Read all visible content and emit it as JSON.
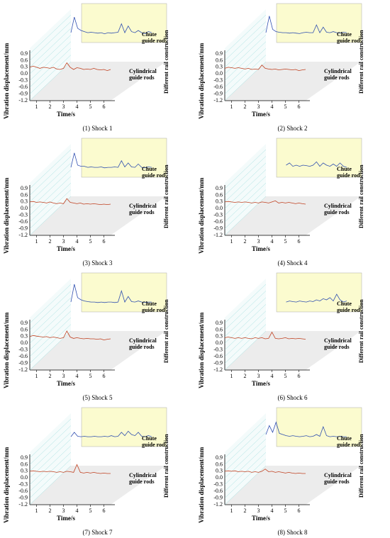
{
  "chart_data": [
    {
      "type": "waterfall",
      "caption": "(1) Shock 1",
      "y_label": "Vibration displacement/mm",
      "x_label": "Time/s",
      "z_label": "Different rail construction",
      "x": [
        0.5,
        0.75,
        1,
        1.25,
        1.5,
        1.75,
        2,
        2.25,
        2.5,
        2.75,
        3,
        3.25,
        3.5,
        3.75,
        4,
        4.25,
        4.5,
        4.75,
        5,
        5.25,
        5.5,
        5.75,
        6,
        6.25,
        6.5
      ],
      "xlim": [
        0.5,
        6.5
      ],
      "xticks": [
        1,
        2,
        3,
        4,
        5,
        6
      ],
      "ylim": [
        -1.2,
        0.9
      ],
      "yticks": [
        0.9,
        0.6,
        0.3,
        {
          "value": 0,
          "label": "0.0"
        },
        -0.3,
        -0.6,
        -0.9,
        -1.2
      ],
      "series": [
        {
          "name": "Chute guide rod",
          "color": "#3050b0",
          "values": [
            0.1,
            0.8,
            0.3,
            0.2,
            0.15,
            0.1,
            0.12,
            0.1,
            0.08,
            0.1,
            0.05,
            0.1,
            0.08,
            0.1,
            0.12,
            0.5,
            0.1,
            0.4,
            0.15,
            0.1,
            0.2,
            0.1,
            0.05,
            0.15,
            0.1
          ]
        },
        {
          "name": "Cylindrical guide rods",
          "color": "#c04020",
          "values": [
            0.3,
            0.35,
            0.3,
            0.25,
            0.3,
            0.28,
            0.25,
            0.3,
            0.22,
            0.2,
            0.25,
            0.5,
            0.3,
            0.2,
            0.28,
            0.25,
            0.2,
            0.22,
            0.2,
            0.25,
            0.2,
            0.18,
            0.2,
            0.15,
            0.2
          ]
        }
      ]
    },
    {
      "type": "waterfall",
      "caption": "(2) Shock 2",
      "y_label": "Vibration displacement/mm",
      "x_label": "Time/s",
      "z_label": "Different rail construction",
      "x": [
        0.5,
        0.75,
        1,
        1.25,
        1.5,
        1.75,
        2,
        2.25,
        2.5,
        2.75,
        3,
        3.25,
        3.5,
        3.75,
        4,
        4.25,
        4.5,
        4.75,
        5,
        5.25,
        5.5,
        5.75,
        6,
        6.25,
        6.5
      ],
      "xlim": [
        0.5,
        6.5
      ],
      "xticks": [
        1,
        2,
        3,
        4,
        5,
        6
      ],
      "ylim": [
        -1.2,
        0.9
      ],
      "yticks": [
        0.9,
        0.6,
        0.3,
        {
          "value": 0,
          "label": "0.0"
        },
        -0.3,
        -0.6,
        -0.9,
        -1.2
      ],
      "series": [
        {
          "name": "Chute guide rod",
          "color": "#3050b0",
          "values": [
            0.1,
            0.85,
            0.25,
            0.15,
            0.12,
            0.1,
            0.1,
            0.08,
            0.1,
            0.08,
            0.06,
            0.1,
            0.12,
            0.1,
            0.1,
            0.45,
            0.1,
            0.35,
            0.12,
            0.1,
            0.15,
            0.1,
            0.08,
            0.12,
            0.1
          ]
        },
        {
          "name": "Cylindrical guide rods",
          "color": "#c04020",
          "values": [
            0.25,
            0.3,
            0.28,
            0.25,
            0.28,
            0.25,
            0.22,
            0.25,
            0.2,
            0.22,
            0.2,
            0.4,
            0.25,
            0.22,
            0.2,
            0.22,
            0.18,
            0.2,
            0.22,
            0.2,
            0.18,
            0.2,
            0.15,
            0.18,
            0.2
          ]
        }
      ]
    },
    {
      "type": "waterfall",
      "caption": "(3) Shock 3",
      "y_label": "Vibration displacement/mm",
      "x_label": "Time/s",
      "z_label": "Different rail construction",
      "x": [
        0.5,
        0.75,
        1,
        1.25,
        1.5,
        1.75,
        2,
        2.25,
        2.5,
        2.75,
        3,
        3.25,
        3.5,
        3.75,
        4,
        4.25,
        4.5,
        4.75,
        5,
        5.25,
        5.5,
        5.75,
        6,
        6.25,
        6.5
      ],
      "xlim": [
        0.5,
        6.5
      ],
      "xticks": [
        1,
        2,
        3,
        4,
        5,
        6
      ],
      "ylim": [
        -1.2,
        0.9
      ],
      "yticks": [
        0.9,
        0.6,
        0.3,
        {
          "value": 0,
          "label": "0.0"
        },
        -0.3,
        -0.6,
        -0.9,
        -1.2
      ],
      "series": [
        {
          "name": "Chute guide rod",
          "color": "#3050b0",
          "values": [
            0.1,
            0.75,
            0.2,
            0.15,
            0.15,
            0.1,
            0.12,
            0.1,
            0.1,
            0.12,
            0.08,
            0.1,
            0.1,
            0.12,
            0.1,
            0.4,
            0.12,
            0.3,
            0.12,
            0.1,
            0.25,
            0.1,
            0.08,
            0.12,
            0.1
          ]
        },
        {
          "name": "Cylindrical guide rods",
          "color": "#c04020",
          "values": [
            0.3,
            0.32,
            0.28,
            0.3,
            0.28,
            0.25,
            0.3,
            0.25,
            0.22,
            0.25,
            0.22,
            0.45,
            0.28,
            0.25,
            0.22,
            0.25,
            0.2,
            0.22,
            0.2,
            0.22,
            0.2,
            0.18,
            0.2,
            0.18,
            0.2
          ]
        }
      ]
    },
    {
      "type": "waterfall",
      "caption": "(4) Shock 4",
      "y_label": "Vibration displacement/mm",
      "x_label": "Time/s",
      "z_label": "Different rail construction",
      "x": [
        0.5,
        0.75,
        1,
        1.25,
        1.5,
        1.75,
        2,
        2.25,
        2.5,
        2.75,
        3,
        3.25,
        3.5,
        3.75,
        4,
        4.25,
        4.5,
        4.75,
        5,
        5.25,
        5.5,
        5.75,
        6,
        6.25,
        6.5
      ],
      "xlim": [
        0.5,
        6.5
      ],
      "xticks": [
        1,
        2,
        3,
        4,
        5,
        6
      ],
      "ylim": [
        -1.2,
        0.9
      ],
      "yticks": [
        0.9,
        0.6,
        0.3,
        {
          "value": 0,
          "label": "0.0"
        },
        -0.3,
        -0.6,
        -0.9,
        -1.2
      ],
      "series": [
        {
          "name": "Chute guide rod",
          "color": "#3050b0",
          "values": [
            null,
            null,
            null,
            null,
            null,
            null,
            0.2,
            0.3,
            0.15,
            0.2,
            0.15,
            0.2,
            0.18,
            0.15,
            0.2,
            0.35,
            0.15,
            0.3,
            0.2,
            0.15,
            0.25,
            0.15,
            0.3,
            0.15,
            0.1
          ]
        },
        {
          "name": "Cylindrical guide rods",
          "color": "#c04020",
          "values": [
            0.3,
            0.32,
            0.3,
            0.28,
            0.3,
            0.28,
            0.3,
            0.28,
            0.25,
            0.28,
            0.25,
            0.3,
            0.28,
            0.25,
            0.3,
            0.35,
            0.25,
            0.28,
            0.25,
            0.28,
            0.25,
            0.22,
            0.25,
            0.22,
            0.2
          ]
        }
      ]
    },
    {
      "type": "waterfall",
      "caption": "(5) Shock 5",
      "y_label": "Vibration displacement/mm",
      "x_label": "Time/s",
      "z_label": "Different rail construction",
      "x": [
        0.5,
        0.75,
        1,
        1.25,
        1.5,
        1.75,
        2,
        2.25,
        2.5,
        2.75,
        3,
        3.25,
        3.5,
        3.75,
        4,
        4.25,
        4.5,
        4.75,
        5,
        5.25,
        5.5,
        5.75,
        6,
        6.25,
        6.5
      ],
      "xlim": [
        0.5,
        6.5
      ],
      "xticks": [
        1,
        2,
        3,
        4,
        5,
        6
      ],
      "ylim": [
        -1.2,
        0.9
      ],
      "yticks": [
        0.9,
        0.6,
        0.3,
        {
          "value": 0,
          "label": "0.0"
        },
        -0.3,
        -0.6,
        -0.9,
        -1.2
      ],
      "series": [
        {
          "name": "Chute guide rod",
          "color": "#3050b0",
          "values": [
            0.1,
            0.9,
            0.3,
            0.2,
            0.15,
            0.12,
            0.1,
            0.1,
            0.08,
            0.1,
            0.08,
            0.1,
            0.1,
            0.08,
            0.1,
            0.6,
            0.1,
            0.35,
            0.12,
            0.1,
            0.15,
            0.1,
            0.08,
            0.1,
            0.1
          ]
        },
        {
          "name": "Cylindrical guide rods",
          "color": "#c04020",
          "values": [
            0.3,
            0.35,
            0.32,
            0.3,
            0.28,
            0.3,
            0.25,
            0.28,
            0.25,
            0.22,
            0.25,
            0.55,
            0.28,
            0.22,
            0.25,
            0.22,
            0.2,
            0.22,
            0.2,
            0.2,
            0.18,
            0.2,
            0.15,
            0.18,
            0.2
          ]
        }
      ]
    },
    {
      "type": "waterfall",
      "caption": "(6) Shock 6",
      "y_label": "Vibration displacement/mm",
      "x_label": "Time/s",
      "z_label": "Different rail construction",
      "x": [
        0.5,
        0.75,
        1,
        1.25,
        1.5,
        1.75,
        2,
        2.25,
        2.5,
        2.75,
        3,
        3.25,
        3.5,
        3.75,
        4,
        4.25,
        4.5,
        4.75,
        5,
        5.25,
        5.5,
        5.75,
        6,
        6.25,
        6.5
      ],
      "xlim": [
        0.5,
        6.5
      ],
      "xticks": [
        1,
        2,
        3,
        4,
        5,
        6
      ],
      "ylim": [
        -1.2,
        0.9
      ],
      "yticks": [
        0.9,
        0.6,
        0.3,
        {
          "value": 0,
          "label": "0.0"
        },
        -0.3,
        -0.6,
        -0.9,
        -1.2
      ],
      "series": [
        {
          "name": "Chute guide rod",
          "color": "#3050b0",
          "values": [
            null,
            null,
            null,
            null,
            null,
            null,
            0.1,
            0.15,
            0.12,
            0.1,
            0.15,
            0.12,
            0.1,
            0.15,
            0.12,
            0.2,
            0.15,
            0.25,
            0.2,
            0.3,
            0.15,
            0.45,
            0.2,
            0.1,
            0.15
          ]
        },
        {
          "name": "Cylindrical guide rods",
          "color": "#c04020",
          "values": [
            0.25,
            0.28,
            0.25,
            0.22,
            0.25,
            0.22,
            0.25,
            0.22,
            0.2,
            0.25,
            0.22,
            0.25,
            0.2,
            0.22,
            0.5,
            0.22,
            0.2,
            0.22,
            0.25,
            0.2,
            0.22,
            0.2,
            0.22,
            0.2,
            0.18
          ]
        }
      ]
    },
    {
      "type": "waterfall",
      "caption": "(7) Shock 7",
      "y_label": "Vibration displacement/mm",
      "x_label": "Time/s",
      "z_label": "Different rail construction",
      "x": [
        0.5,
        0.75,
        1,
        1.25,
        1.5,
        1.75,
        2,
        2.25,
        2.5,
        2.75,
        3,
        3.25,
        3.5,
        3.75,
        4,
        4.25,
        4.5,
        4.75,
        5,
        5.25,
        5.5,
        5.75,
        6,
        6.25,
        6.5
      ],
      "xlim": [
        0.5,
        6.5
      ],
      "xticks": [
        1,
        2,
        3,
        4,
        5,
        6
      ],
      "ylim": [
        -1.2,
        0.9
      ],
      "yticks": [
        0.9,
        0.6,
        0.3,
        {
          "value": 0,
          "label": "0.0"
        },
        -0.3,
        -0.6,
        -0.9,
        -1.2
      ],
      "series": [
        {
          "name": "Chute guide rod",
          "color": "#3050b0",
          "values": [
            0.1,
            0.3,
            0.12,
            0.1,
            0.12,
            0.1,
            0.1,
            0.12,
            0.1,
            0.1,
            0.12,
            0.1,
            0.15,
            0.1,
            0.12,
            0.3,
            0.15,
            0.35,
            0.2,
            0.15,
            0.3,
            0.12,
            0.1,
            0.15,
            0.1
          ]
        },
        {
          "name": "Cylindrical guide rods",
          "color": "#c04020",
          "values": [
            0.3,
            0.32,
            0.3,
            0.28,
            0.3,
            0.28,
            0.3,
            0.28,
            0.25,
            0.28,
            0.25,
            0.3,
            0.28,
            0.25,
            0.6,
            0.25,
            0.22,
            0.25,
            0.22,
            0.25,
            0.22,
            0.2,
            0.22,
            0.2,
            0.2
          ]
        }
      ]
    },
    {
      "type": "waterfall",
      "caption": "(8) Shock 8",
      "y_label": "Vibration displacement/mm",
      "x_label": "Time/s",
      "z_label": "Different rail construction",
      "x": [
        0.5,
        0.75,
        1,
        1.25,
        1.5,
        1.75,
        2,
        2.25,
        2.5,
        2.75,
        3,
        3.25,
        3.5,
        3.75,
        4,
        4.25,
        4.5,
        4.75,
        5,
        5.25,
        5.5,
        5.75,
        6,
        6.25,
        6.5
      ],
      "xlim": [
        0.5,
        6.5
      ],
      "xticks": [
        1,
        2,
        3,
        4,
        5,
        6
      ],
      "ylim": [
        -1.2,
        0.9
      ],
      "yticks": [
        0.9,
        0.6,
        0.3,
        {
          "value": 0,
          "label": "0.0"
        },
        -0.3,
        -0.6,
        -0.9,
        -1.2
      ],
      "series": [
        {
          "name": "Chute guide rod",
          "color": "#3050b0",
          "values": [
            0.2,
            0.6,
            0.3,
            0.75,
            0.25,
            0.2,
            0.15,
            0.12,
            0.15,
            0.12,
            0.1,
            0.12,
            0.15,
            0.1,
            0.12,
            0.2,
            0.12,
            0.55,
            0.15,
            0.1,
            0.12,
            0.1,
            0.12,
            0.1,
            0.1
          ]
        },
        {
          "name": "Cylindrical guide rods",
          "color": "#c04020",
          "values": [
            0.3,
            0.32,
            0.3,
            0.32,
            0.28,
            0.3,
            0.28,
            0.3,
            0.25,
            0.28,
            0.25,
            0.3,
            0.4,
            0.28,
            0.3,
            0.25,
            0.28,
            0.25,
            0.22,
            0.25,
            0.22,
            0.2,
            0.22,
            0.2,
            0.2
          ]
        }
      ]
    }
  ]
}
